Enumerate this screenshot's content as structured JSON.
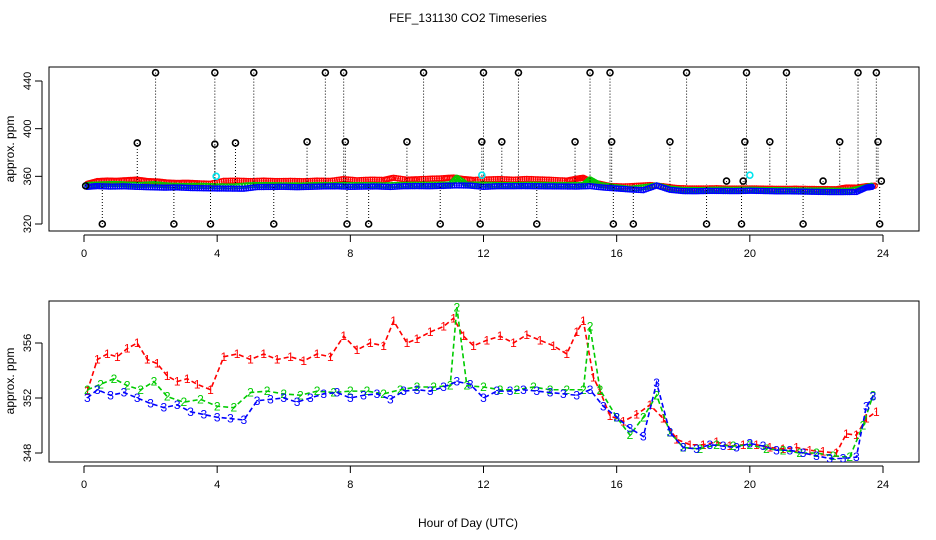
{
  "figure": {
    "title": "FEF_131130  CO2 Timeseries",
    "xlabel": "Hour of Day (UTC)"
  },
  "colors": {
    "series1": "#ff0000",
    "series2": "#00cc00",
    "series3": "#0000ff",
    "cyan": "#00e5ee",
    "black": "#000000"
  },
  "chart_data": [
    {
      "type": "scatter",
      "title": "",
      "ylabel": "approx. ppm",
      "xlim": [
        0,
        24
      ],
      "ylim": [
        316,
        446
      ],
      "x_ticks": [
        "0",
        "4",
        "8",
        "12",
        "16",
        "20",
        "24"
      ],
      "y_ticks": [
        "320",
        "360",
        "400",
        "440"
      ],
      "series": [
        {
          "marker": "circle",
          "color": "#000000",
          "values": [
            [
              0.05,
              352
            ],
            [
              0.55,
              320
            ],
            [
              1.6,
              388
            ],
            [
              2.15,
              447
            ],
            [
              2.7,
              320
            ],
            [
              3.8,
              320
            ],
            [
              3.93,
              447
            ],
            [
              3.93,
              387
            ],
            [
              4.55,
              388
            ],
            [
              5.1,
              447
            ],
            [
              5.7,
              320
            ],
            [
              6.7,
              389
            ],
            [
              7.25,
              447
            ],
            [
              7.8,
              447
            ],
            [
              7.85,
              389
            ],
            [
              7.9,
              320
            ],
            [
              8.55,
              320
            ],
            [
              9.7,
              389
            ],
            [
              10.2,
              447
            ],
            [
              10.7,
              320
            ],
            [
              11.9,
              320
            ],
            [
              11.95,
              389
            ],
            [
              12.0,
              447
            ],
            [
              12.55,
              389
            ],
            [
              13.05,
              447
            ],
            [
              13.6,
              320
            ],
            [
              14.75,
              389
            ],
            [
              15.2,
              447
            ],
            [
              15.8,
              447
            ],
            [
              15.85,
              389
            ],
            [
              15.9,
              320
            ],
            [
              16.5,
              320
            ],
            [
              17.6,
              389
            ],
            [
              18.1,
              447
            ],
            [
              18.7,
              320
            ],
            [
              19.3,
              356
            ],
            [
              19.75,
              320
            ],
            [
              19.8,
              356
            ],
            [
              19.85,
              389
            ],
            [
              19.9,
              447
            ],
            [
              20.6,
              389
            ],
            [
              21.1,
              447
            ],
            [
              21.6,
              320
            ],
            [
              22.2,
              356
            ],
            [
              22.7,
              389
            ],
            [
              23.25,
              447
            ],
            [
              23.8,
              447
            ],
            [
              23.85,
              389
            ],
            [
              23.9,
              320
            ],
            [
              23.95,
              356
            ]
          ]
        },
        {
          "marker": "circle",
          "color": "#00e5ee",
          "values": [
            [
              3.97,
              360
            ],
            [
              11.95,
              361
            ],
            [
              20.0,
              361
            ]
          ]
        }
      ]
    },
    {
      "type": "line",
      "title": "",
      "ylabel": "approx. ppm",
      "xlim": [
        0,
        24
      ],
      "ylim": [
        347.2,
        359.3
      ],
      "x_ticks": [
        "0",
        "4",
        "8",
        "12",
        "16",
        "20",
        "24"
      ],
      "y_ticks": [
        "348",
        "352",
        "356"
      ],
      "series": [
        {
          "marker": "1",
          "color": "#ff0000",
          "values": [
            [
              0.1,
              352.5
            ],
            [
              0.4,
              354.8
            ],
            [
              0.7,
              355.2
            ],
            [
              1.0,
              355.0
            ],
            [
              1.3,
              355.6
            ],
            [
              1.6,
              356.0
            ],
            [
              1.9,
              354.8
            ],
            [
              2.2,
              354.5
            ],
            [
              2.5,
              353.6
            ],
            [
              2.8,
              353.2
            ],
            [
              3.1,
              353.4
            ],
            [
              3.4,
              353.0
            ],
            [
              3.8,
              352.6
            ],
            [
              4.2,
              355.0
            ],
            [
              4.6,
              355.2
            ],
            [
              5.0,
              354.8
            ],
            [
              5.4,
              355.2
            ],
            [
              5.8,
              354.8
            ],
            [
              6.2,
              355.0
            ],
            [
              6.6,
              354.7
            ],
            [
              7.0,
              355.2
            ],
            [
              7.4,
              355.0
            ],
            [
              7.8,
              356.5
            ],
            [
              8.2,
              355.5
            ],
            [
              8.6,
              356.0
            ],
            [
              9.0,
              355.8
            ],
            [
              9.3,
              357.6
            ],
            [
              9.7,
              356.0
            ],
            [
              10.0,
              356.3
            ],
            [
              10.4,
              356.8
            ],
            [
              10.8,
              357.2
            ],
            [
              11.1,
              357.8
            ],
            [
              11.4,
              356.5
            ],
            [
              11.7,
              355.8
            ],
            [
              12.1,
              356.2
            ],
            [
              12.5,
              356.5
            ],
            [
              12.9,
              356.0
            ],
            [
              13.3,
              356.6
            ],
            [
              13.7,
              356.2
            ],
            [
              14.1,
              355.8
            ],
            [
              14.5,
              355.2
            ],
            [
              14.8,
              356.8
            ],
            [
              15.0,
              357.6
            ],
            [
              15.3,
              353.5
            ],
            [
              15.5,
              352.5
            ],
            [
              15.8,
              350.7
            ],
            [
              16.2,
              350.3
            ],
            [
              16.6,
              350.8
            ],
            [
              17.0,
              351.5
            ],
            [
              17.4,
              350.5
            ],
            [
              17.8,
              349.0
            ],
            [
              18.2,
              348.6
            ],
            [
              18.6,
              348.6
            ],
            [
              19.0,
              348.8
            ],
            [
              19.4,
              348.5
            ],
            [
              19.8,
              348.6
            ],
            [
              20.2,
              348.6
            ],
            [
              20.6,
              348.4
            ],
            [
              21.0,
              348.3
            ],
            [
              21.4,
              348.4
            ],
            [
              21.8,
              348.2
            ],
            [
              22.2,
              348.1
            ],
            [
              22.6,
              348.0
            ],
            [
              22.9,
              349.4
            ],
            [
              23.2,
              349.3
            ],
            [
              23.5,
              350.5
            ],
            [
              23.8,
              351.0
            ]
          ]
        },
        {
          "marker": "2",
          "color": "#00cc00",
          "values": [
            [
              0.1,
              352.6
            ],
            [
              0.5,
              353.0
            ],
            [
              0.9,
              353.4
            ],
            [
              1.3,
              352.9
            ],
            [
              1.7,
              352.6
            ],
            [
              2.1,
              353.2
            ],
            [
              2.5,
              352.1
            ],
            [
              3.0,
              351.7
            ],
            [
              3.5,
              351.9
            ],
            [
              4.0,
              351.4
            ],
            [
              4.5,
              351.3
            ],
            [
              5.0,
              352.4
            ],
            [
              5.5,
              352.5
            ],
            [
              6.0,
              352.3
            ],
            [
              6.5,
              352.2
            ],
            [
              7.0,
              352.5
            ],
            [
              7.5,
              352.4
            ],
            [
              8.0,
              352.5
            ],
            [
              8.5,
              352.5
            ],
            [
              9.0,
              352.3
            ],
            [
              9.5,
              352.6
            ],
            [
              10.0,
              352.8
            ],
            [
              10.5,
              352.8
            ],
            [
              11.0,
              352.9
            ],
            [
              11.2,
              358.6
            ],
            [
              11.5,
              352.9
            ],
            [
              12.0,
              352.8
            ],
            [
              12.5,
              352.6
            ],
            [
              13.0,
              352.6
            ],
            [
              13.5,
              352.8
            ],
            [
              14.0,
              352.6
            ],
            [
              14.5,
              352.6
            ],
            [
              15.0,
              352.6
            ],
            [
              15.2,
              357.2
            ],
            [
              15.5,
              352.6
            ],
            [
              16.0,
              350.6
            ],
            [
              16.4,
              349.3
            ],
            [
              16.8,
              350.6
            ],
            [
              17.2,
              352.2
            ],
            [
              17.6,
              349.5
            ],
            [
              18.0,
              348.4
            ],
            [
              18.5,
              348.3
            ],
            [
              19.0,
              348.6
            ],
            [
              19.5,
              348.5
            ],
            [
              20.0,
              348.6
            ],
            [
              20.5,
              348.3
            ],
            [
              21.0,
              348.2
            ],
            [
              21.5,
              348.0
            ],
            [
              22.0,
              348.0
            ],
            [
              22.5,
              347.8
            ],
            [
              23.0,
              347.7
            ],
            [
              23.4,
              350.0
            ],
            [
              23.7,
              352.2
            ]
          ]
        },
        {
          "marker": "3",
          "color": "#0000ff",
          "values": [
            [
              0.1,
              352.0
            ],
            [
              0.4,
              352.6
            ],
            [
              0.8,
              352.2
            ],
            [
              1.2,
              352.4
            ],
            [
              1.6,
              352.0
            ],
            [
              2.0,
              351.6
            ],
            [
              2.4,
              351.3
            ],
            [
              2.8,
              351.5
            ],
            [
              3.2,
              351.0
            ],
            [
              3.6,
              350.8
            ],
            [
              4.0,
              350.6
            ],
            [
              4.4,
              350.5
            ],
            [
              4.8,
              350.4
            ],
            [
              5.2,
              351.8
            ],
            [
              5.6,
              351.9
            ],
            [
              6.0,
              352.0
            ],
            [
              6.4,
              351.7
            ],
            [
              6.8,
              352.0
            ],
            [
              7.2,
              352.3
            ],
            [
              7.6,
              352.4
            ],
            [
              8.0,
              352.0
            ],
            [
              8.4,
              352.2
            ],
            [
              8.8,
              352.3
            ],
            [
              9.2,
              351.9
            ],
            [
              9.6,
              352.5
            ],
            [
              10.0,
              352.6
            ],
            [
              10.4,
              352.5
            ],
            [
              10.8,
              352.8
            ],
            [
              11.2,
              353.2
            ],
            [
              11.6,
              353.0
            ],
            [
              12.0,
              352.0
            ],
            [
              12.4,
              352.5
            ],
            [
              12.8,
              352.5
            ],
            [
              13.2,
              352.6
            ],
            [
              13.6,
              352.5
            ],
            [
              14.0,
              352.4
            ],
            [
              14.4,
              352.3
            ],
            [
              14.8,
              352.2
            ],
            [
              15.2,
              352.6
            ],
            [
              15.6,
              351.4
            ],
            [
              16.0,
              350.6
            ],
            [
              16.4,
              349.8
            ],
            [
              16.8,
              349.2
            ],
            [
              17.2,
              353.1
            ],
            [
              17.6,
              349.5
            ],
            [
              18.0,
              348.4
            ],
            [
              18.4,
              348.3
            ],
            [
              18.8,
              348.6
            ],
            [
              19.2,
              348.5
            ],
            [
              19.6,
              348.4
            ],
            [
              20.0,
              348.7
            ],
            [
              20.4,
              348.5
            ],
            [
              20.8,
              348.2
            ],
            [
              21.2,
              348.2
            ],
            [
              21.6,
              348.0
            ],
            [
              22.0,
              347.8
            ],
            [
              22.4,
              347.6
            ],
            [
              22.8,
              347.6
            ],
            [
              23.2,
              347.7
            ],
            [
              23.5,
              351.4
            ],
            [
              23.7,
              352.1
            ]
          ]
        }
      ]
    }
  ]
}
